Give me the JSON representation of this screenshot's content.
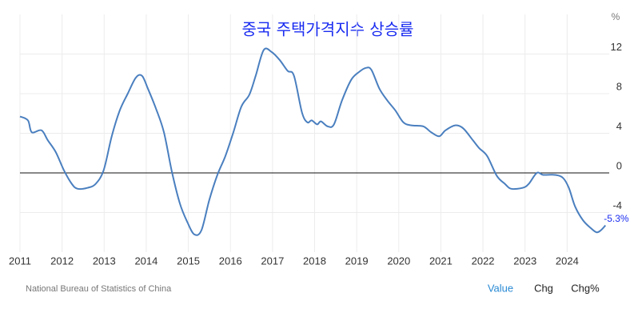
{
  "chart_data": {
    "type": "line",
    "title": "중국 주택가격지수 상승률",
    "y_axis_label": "%",
    "color": "#4a7fbf",
    "grid": true,
    "zero_line": true,
    "xlim": [
      2011,
      2025
    ],
    "xticks": [
      2011,
      2012,
      2013,
      2014,
      2015,
      2016,
      2017,
      2018,
      2019,
      2020,
      2021,
      2022,
      2023,
      2024
    ],
    "ylim": [
      -8,
      16
    ],
    "yticks": [
      -4,
      0,
      4,
      8,
      12
    ],
    "x": [
      2011.0,
      2011.19,
      2011.28,
      2011.51,
      2011.66,
      2011.85,
      2012.04,
      2012.23,
      2012.37,
      2012.61,
      2012.8,
      2012.99,
      2013.18,
      2013.37,
      2013.56,
      2013.75,
      2013.9,
      2014.04,
      2014.23,
      2014.42,
      2014.61,
      2014.8,
      2014.98,
      2015.14,
      2015.31,
      2015.5,
      2015.69,
      2015.88,
      2016.07,
      2016.26,
      2016.45,
      2016.6,
      2016.79,
      2016.98,
      2017.17,
      2017.36,
      2017.51,
      2017.7,
      2017.83,
      2017.93,
      2018.06,
      2018.15,
      2018.31,
      2018.46,
      2018.65,
      2018.87,
      2019.06,
      2019.22,
      2019.35,
      2019.54,
      2019.73,
      2019.92,
      2020.11,
      2020.3,
      2020.58,
      2020.77,
      2020.96,
      2021.11,
      2021.34,
      2021.53,
      2021.76,
      2021.91,
      2022.1,
      2022.33,
      2022.52,
      2022.67,
      2022.95,
      2023.09,
      2023.28,
      2023.43,
      2023.71,
      2023.9,
      2024.04,
      2024.19,
      2024.38,
      2024.57,
      2024.7,
      2024.8,
      2024.91
    ],
    "values": [
      5.7,
      5.3,
      4.1,
      4.3,
      3.3,
      2.1,
      0.3,
      -1.1,
      -1.6,
      -1.5,
      -1.1,
      0.3,
      3.7,
      6.3,
      8.0,
      9.6,
      9.8,
      8.5,
      6.5,
      4.1,
      0.1,
      -3.1,
      -5.0,
      -6.2,
      -5.8,
      -2.7,
      -0.2,
      1.7,
      4.1,
      6.7,
      7.9,
      9.8,
      12.4,
      12.2,
      11.4,
      10.3,
      9.8,
      6.1,
      5.1,
      5.3,
      4.9,
      5.2,
      4.7,
      4.9,
      7.3,
      9.4,
      10.2,
      10.6,
      10.4,
      8.5,
      7.3,
      6.3,
      5.1,
      4.8,
      4.7,
      4.1,
      3.7,
      4.3,
      4.8,
      4.5,
      3.3,
      2.5,
      1.7,
      -0.3,
      -1.1,
      -1.6,
      -1.5,
      -1.1,
      0.0,
      -0.2,
      -0.2,
      -0.5,
      -1.5,
      -3.4,
      -4.8,
      -5.6,
      -6.0,
      -5.8,
      -5.3
    ],
    "last_value_label": "-5.3%",
    "source": "National Bureau of Statistics of China"
  },
  "tabs": [
    "Value",
    "Chg",
    "Chg%"
  ]
}
